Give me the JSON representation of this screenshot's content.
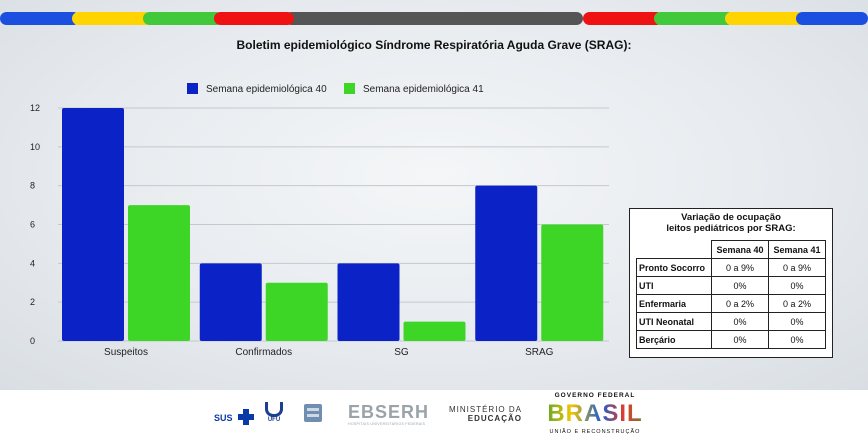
{
  "colors": {
    "series1": "#0a22c6",
    "series2": "#3ed626",
    "bar_yellow": "#ffd400",
    "bar_green": "#41c93b",
    "bar_red": "#ee1212",
    "bar_gray": "#555555",
    "bar_blue": "#1b4fe0"
  },
  "chart_data": {
    "type": "bar",
    "title": "Boletim epidemiológico Síndrome Respiratória Aguda Grave (SRAG):",
    "categories": [
      "Suspeitos",
      "Confirmados",
      "SG",
      "SRAG"
    ],
    "series": [
      {
        "name": "Semana epidemiológica 40",
        "values": [
          12,
          4,
          4,
          8
        ]
      },
      {
        "name": "Semana epidemiológica 41",
        "values": [
          7,
          3,
          1,
          6
        ]
      }
    ],
    "yticks": [
      0,
      2,
      4,
      6,
      8,
      10,
      12
    ],
    "ylim": [
      0,
      12
    ],
    "grid": true,
    "legend": "top-left"
  },
  "occupancy": {
    "title_line1": "Variação de ocupação",
    "title_line2": "leitos pediátricos por SRAG:",
    "headers": [
      "Semana 40",
      "Semana 41"
    ],
    "rows": [
      {
        "label": "Pronto Socorro",
        "w40": "0 a 9%",
        "w41": "0 a 9%"
      },
      {
        "label": "UTI",
        "w40": "0%",
        "w41": "0%"
      },
      {
        "label": "Enfermaria",
        "w40": "0 a 2%",
        "w41": "0 a 2%"
      },
      {
        "label": "UTI Neonatal",
        "w40": "0%",
        "w41": "0%"
      },
      {
        "label": "Berçário",
        "w40": "0%",
        "w41": "0%"
      }
    ]
  },
  "footer": {
    "sus": "SUS",
    "ufu": "UFU",
    "ebserh": "EBSERH",
    "ebserh_sub": "HOSPITAIS UNIVERSITÁRIOS FEDERAIS",
    "ministerio_line1": "MINISTÉRIO DA",
    "ministerio_line2": "EDUCAÇÃO",
    "gov_top": "GOVERNO FEDERAL",
    "gov_main": "BRASIL",
    "gov_bottom": "UNIÃO E RECONSTRUÇÃO"
  }
}
